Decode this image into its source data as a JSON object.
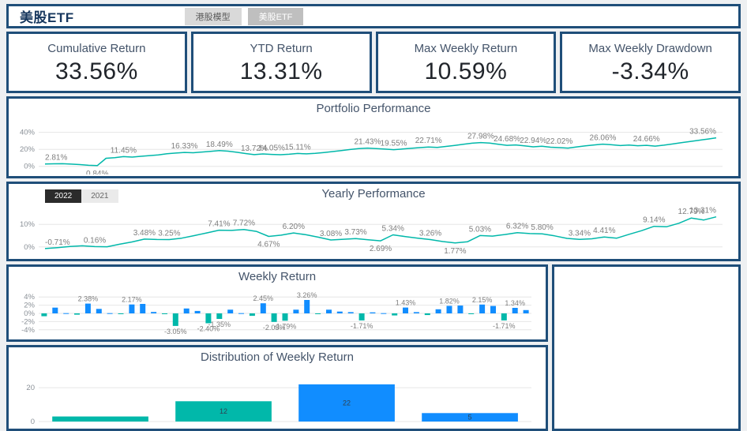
{
  "header": {
    "title": "美股ETF",
    "tabs": [
      {
        "label": "港股模型",
        "selected": false
      },
      {
        "label": "美股ETF",
        "selected": true
      }
    ]
  },
  "kpis": [
    {
      "title": "Cumulative Return",
      "value": "33.56%"
    },
    {
      "title": "YTD Return",
      "value": "13.31%"
    },
    {
      "title": "Max Weekly Return",
      "value": "10.59%"
    },
    {
      "title": "Max Weekly Drawdown",
      "value": "-3.34%"
    }
  ],
  "yearly_buttons": [
    {
      "label": "2022",
      "selected": true
    },
    {
      "label": "2021",
      "selected": false
    }
  ],
  "colors": {
    "navy": "#1F4E79",
    "teal": "#01B8AA",
    "blue": "#118DFF",
    "title_text": "#44546A",
    "grid": "#E6E6E6",
    "label_gray": "#7E7E7E"
  },
  "chart_data": [
    {
      "type": "line",
      "title": "Portfolio Performance",
      "color": "#01B8AA",
      "ylim": [
        -4,
        48
      ],
      "grid": true,
      "yticks": [
        {
          "v": 0,
          "t": "0%"
        },
        {
          "v": 20,
          "t": "20%"
        },
        {
          "v": 40,
          "t": "40%"
        }
      ],
      "values": [
        2.81,
        3.0,
        3.1,
        2.6,
        2.0,
        1.2,
        0.84,
        9.5,
        10.2,
        11.45,
        10.9,
        11.8,
        12.6,
        13.5,
        14.8,
        15.6,
        16.33,
        16.0,
        16.8,
        17.6,
        18.49,
        17.8,
        16.5,
        15.0,
        13.72,
        14.6,
        14.05,
        13.6,
        14.2,
        15.11,
        14.7,
        15.3,
        16.2,
        17.4,
        18.6,
        19.8,
        20.8,
        21.43,
        20.9,
        20.2,
        19.55,
        20.3,
        21.2,
        22.0,
        22.71,
        22.2,
        23.4,
        24.6,
        26.0,
        27.2,
        27.98,
        27.3,
        25.9,
        24.68,
        25.2,
        24.1,
        22.94,
        23.6,
        22.5,
        22.02,
        21.4,
        22.8,
        24.0,
        25.2,
        26.06,
        25.3,
        24.4,
        25.0,
        24.2,
        24.66,
        23.8,
        24.9,
        26.3,
        27.8,
        29.2,
        30.6,
        32.0,
        33.56
      ],
      "labels": [
        {
          "i": 0,
          "t": "2.81%"
        },
        {
          "i": 6,
          "t": "0.84%",
          "b": true
        },
        {
          "i": 9,
          "t": "11.45%"
        },
        {
          "i": 16,
          "t": "16.33%"
        },
        {
          "i": 20,
          "t": "18.49%"
        },
        {
          "i": 24,
          "t": "13.72%"
        },
        {
          "i": 26,
          "t": "14.05%"
        },
        {
          "i": 29,
          "t": "15.11%"
        },
        {
          "i": 37,
          "t": "21.43%"
        },
        {
          "i": 40,
          "t": "19.55%"
        },
        {
          "i": 44,
          "t": "22.71%"
        },
        {
          "i": 50,
          "t": "27.98%"
        },
        {
          "i": 53,
          "t": "24.68%"
        },
        {
          "i": 56,
          "t": "22.94%"
        },
        {
          "i": 59,
          "t": "22.02%"
        },
        {
          "i": 64,
          "t": "26.06%"
        },
        {
          "i": 69,
          "t": "24.66%"
        },
        {
          "i": 77,
          "t": "33.56%"
        }
      ]
    },
    {
      "type": "line",
      "title": "Yearly Performance",
      "color": "#01B8AA",
      "ylim": [
        -2.5,
        16
      ],
      "grid": true,
      "yticks": [
        {
          "v": 0,
          "t": "0%"
        },
        {
          "v": 10,
          "t": "10%"
        }
      ],
      "values": [
        -0.71,
        -0.3,
        0.2,
        0.5,
        0.16,
        0.1,
        1.2,
        2.2,
        3.48,
        3.3,
        3.25,
        3.9,
        5.0,
        6.2,
        7.41,
        7.3,
        7.72,
        6.9,
        4.67,
        5.2,
        6.2,
        5.4,
        4.3,
        3.08,
        3.4,
        3.73,
        3.2,
        2.69,
        5.34,
        4.6,
        3.9,
        3.26,
        2.4,
        1.77,
        2.3,
        5.03,
        4.8,
        5.5,
        6.32,
        5.9,
        5.8,
        4.9,
        3.8,
        3.34,
        3.6,
        4.41,
        3.9,
        5.6,
        7.2,
        9.14,
        8.9,
        10.5,
        12.79,
        11.9,
        13.31
      ],
      "labels": [
        {
          "i": 0,
          "t": "-0.71%"
        },
        {
          "i": 4,
          "t": "0.16%"
        },
        {
          "i": 8,
          "t": "3.48%"
        },
        {
          "i": 10,
          "t": "3.25%"
        },
        {
          "i": 14,
          "t": "7.41%"
        },
        {
          "i": 16,
          "t": "7.72%"
        },
        {
          "i": 18,
          "t": "4.67%",
          "b": true
        },
        {
          "i": 20,
          "t": "6.20%"
        },
        {
          "i": 23,
          "t": "3.08%"
        },
        {
          "i": 25,
          "t": "3.73%"
        },
        {
          "i": 27,
          "t": "2.69%",
          "b": true
        },
        {
          "i": 28,
          "t": "5.34%"
        },
        {
          "i": 31,
          "t": "3.26%"
        },
        {
          "i": 33,
          "t": "1.77%",
          "b": true
        },
        {
          "i": 35,
          "t": "5.03%"
        },
        {
          "i": 38,
          "t": "6.32%"
        },
        {
          "i": 40,
          "t": "5.80%"
        },
        {
          "i": 43,
          "t": "3.34%"
        },
        {
          "i": 45,
          "t": "4.41%"
        },
        {
          "i": 49,
          "t": "9.14%"
        },
        {
          "i": 52,
          "t": "12.79%"
        },
        {
          "i": 54,
          "t": "13.31%"
        }
      ]
    },
    {
      "type": "bar",
      "title": "Weekly Return",
      "ylim": [
        -4.8,
        4.8
      ],
      "grid": true,
      "yticks": [
        {
          "v": 4,
          "t": "4%"
        },
        {
          "v": 2,
          "t": "2%"
        },
        {
          "v": 0,
          "t": "0%"
        },
        {
          "v": -2,
          "t": "-2%"
        },
        {
          "v": -4,
          "t": "-4%"
        }
      ],
      "values": [
        -0.7,
        1.4,
        0.05,
        -0.3,
        2.38,
        1.1,
        0.05,
        -0.2,
        2.17,
        2.3,
        0.35,
        -0.15,
        -3.05,
        1.2,
        0.6,
        -2.4,
        -1.35,
        0.9,
        0.05,
        -0.6,
        2.45,
        -2.08,
        -1.79,
        0.9,
        3.26,
        -0.2,
        0.9,
        0.45,
        0.3,
        -1.71,
        0.25,
        0.05,
        -0.5,
        1.43,
        0.3,
        -0.4,
        1.0,
        1.82,
        1.9,
        -0.2,
        2.15,
        1.8,
        -1.71,
        1.34,
        0.8
      ],
      "labels": [
        {
          "i": 4,
          "t": "2.38%"
        },
        {
          "i": 8,
          "t": "2.17%"
        },
        {
          "i": 12,
          "t": "-3.05%"
        },
        {
          "i": 15,
          "t": "-2.40%"
        },
        {
          "i": 16,
          "t": "-1.35%"
        },
        {
          "i": 20,
          "t": "2.45%"
        },
        {
          "i": 21,
          "t": "-2.08%"
        },
        {
          "i": 22,
          "t": "-1.79%"
        },
        {
          "i": 24,
          "t": "3.26%"
        },
        {
          "i": 29,
          "t": "-1.71%"
        },
        {
          "i": 33,
          "t": "1.43%"
        },
        {
          "i": 37,
          "t": "1.82%"
        },
        {
          "i": 40,
          "t": "2.15%"
        },
        {
          "i": 42,
          "t": "-1.71%"
        },
        {
          "i": 43,
          "t": "1.34%"
        }
      ]
    },
    {
      "type": "bar",
      "title": "Distribution of Weekly Return",
      "ylim": [
        0,
        28
      ],
      "grid": true,
      "inbar": true,
      "barw": 0.78,
      "yticks": [
        {
          "v": 20,
          "t": "20"
        },
        {
          "v": 0,
          "t": "0"
        }
      ],
      "values": [
        3,
        12,
        22,
        5
      ],
      "bar_colors": [
        "teal",
        "teal",
        "blue",
        "blue"
      ],
      "labels": [
        {
          "i": 1,
          "t": "12"
        },
        {
          "i": 2,
          "t": "22"
        },
        {
          "i": 3,
          "t": "5"
        }
      ]
    }
  ]
}
